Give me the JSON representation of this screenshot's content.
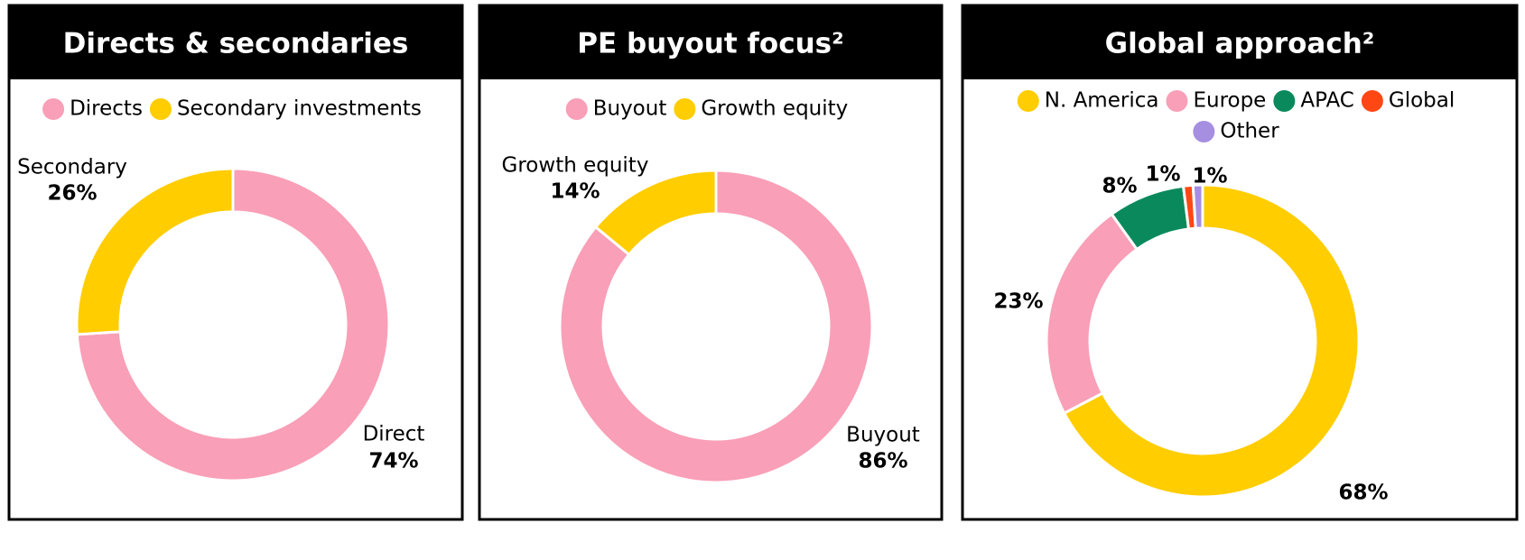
{
  "chart_data": [
    {
      "type": "donut",
      "title": "Directs & secondaries",
      "categories": [
        "Directs",
        "Secondary investments"
      ],
      "labels": [
        "Direct",
        "Secondary"
      ],
      "values": [
        74,
        26
      ],
      "value_labels": [
        "74%",
        "26%"
      ],
      "colors": [
        "#f99fb7",
        "#ffcd00"
      ]
    },
    {
      "type": "donut",
      "title": "PE buyout focus²",
      "categories": [
        "Buyout",
        "Growth equity"
      ],
      "labels": [
        "Buyout",
        "Growth equity"
      ],
      "values": [
        86,
        14
      ],
      "value_labels": [
        "86%",
        "14%"
      ],
      "colors": [
        "#f99fb7",
        "#ffcd00"
      ]
    },
    {
      "type": "donut",
      "title": "Global approach²",
      "categories": [
        "N. America",
        "Europe",
        "APAC",
        "Global",
        "Other"
      ],
      "values": [
        68,
        23,
        8,
        1,
        1
      ],
      "value_labels": [
        "68%",
        "23%",
        "8%",
        "1%",
        "1%"
      ],
      "colors": [
        "#ffcd00",
        "#f99fb7",
        "#0a8a5c",
        "#ff4713",
        "#a68ee0"
      ]
    }
  ]
}
